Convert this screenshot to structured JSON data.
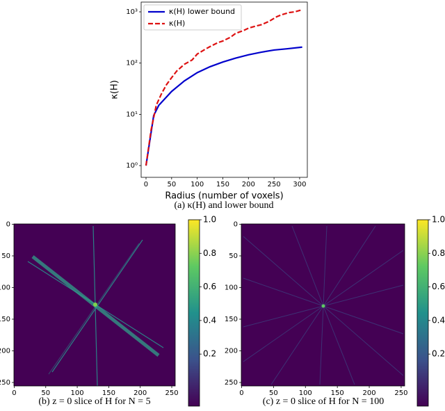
{
  "chart_data": [
    {
      "type": "line",
      "caption": "(a) κ(H) and lower bound",
      "xlabel": "Radius (number of voxels)",
      "ylabel": "κ(H)",
      "xlim": [
        -9.5,
        315
      ],
      "xticks": [
        0,
        50,
        100,
        150,
        200,
        250,
        300
      ],
      "ylim": [
        0.59,
        1550
      ],
      "log_y": true,
      "yticks": [
        {
          "value": 1,
          "label": "10⁰"
        },
        {
          "value": 10,
          "label": "10¹"
        },
        {
          "value": 100,
          "label": "10²"
        },
        {
          "value": 1000,
          "label": "10³"
        }
      ],
      "legend": "upper left",
      "series": [
        {
          "name": "κ(H) lower bound",
          "color": "#0000cc",
          "dashed": false,
          "x": [
            0,
            15,
            25,
            50,
            75,
            100,
            125,
            150,
            175,
            200,
            225,
            250,
            275,
            305
          ],
          "values": [
            1,
            9.5,
            15,
            28,
            45,
            65,
            85,
            105,
            125,
            145,
            163,
            180,
            190,
            205
          ]
        },
        {
          "name": "κ(H)",
          "color": "#dd1111",
          "dashed": true,
          "x": [
            0,
            10,
            20,
            30,
            40,
            50,
            60,
            75,
            90,
            100,
            115,
            125,
            140,
            150,
            165,
            175,
            190,
            200,
            215,
            225,
            240,
            255,
            265,
            280,
            290,
            305
          ],
          "values": [
            1,
            5,
            15,
            25,
            38,
            52,
            70,
            95,
            115,
            150,
            185,
            210,
            250,
            270,
            320,
            380,
            430,
            480,
            530,
            560,
            650,
            800,
            880,
            970,
            1000,
            1100
          ]
        }
      ]
    },
    {
      "type": "heatmap",
      "caption": "(b) z = 0 slice of H for N = 5",
      "xlim": [
        -0.5,
        255.5
      ],
      "ylim": [
        255.5,
        -0.5
      ],
      "xticks": [
        0,
        50,
        100,
        150,
        200,
        250
      ],
      "yticks": [
        0,
        50,
        100,
        150,
        200,
        250
      ],
      "clim": [
        -0.11,
        1.0
      ],
      "cticks": [
        0.2,
        0.4,
        0.6,
        0.8,
        {
          "value": 1.0,
          "label": "1.0"
        }
      ]
    },
    {
      "type": "heatmap",
      "caption": "(c) z = 0 slice of H for N = 100",
      "xlim": [
        -0.5,
        255.5
      ],
      "ylim": [
        255.5,
        -0.5
      ],
      "xticks": [
        0,
        50,
        100,
        150,
        200,
        250
      ],
      "yticks": [
        0,
        50,
        100,
        150,
        200,
        250
      ],
      "clim": [
        -0.11,
        1.0
      ],
      "cticks": [
        0.2,
        0.4,
        0.6,
        0.8,
        {
          "value": 1.0,
          "label": "1.0"
        }
      ]
    }
  ]
}
